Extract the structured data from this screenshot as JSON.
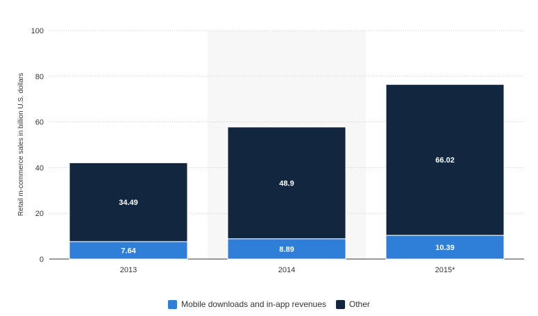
{
  "chart_data": {
    "type": "bar",
    "stacked": true,
    "categories": [
      "2013",
      "2014",
      "2015*"
    ],
    "series": [
      {
        "name": "Mobile downloads and in-app revenues",
        "values": [
          7.64,
          8.89,
          10.39
        ],
        "color": "#2f7ed8"
      },
      {
        "name": "Other",
        "values": [
          34.49,
          48.9,
          66.02
        ],
        "color": "#12263f"
      }
    ],
    "ylabel": "Retail m-commerce sales in billion U.S. dollars",
    "xlabel": "",
    "ylim": [
      0,
      100
    ],
    "yticks": [
      0,
      20,
      40,
      60,
      80,
      100
    ],
    "grid": true,
    "highlighted_category": "2014",
    "highlight_color": "#f7f7f7",
    "legend_position": "bottom-center"
  }
}
